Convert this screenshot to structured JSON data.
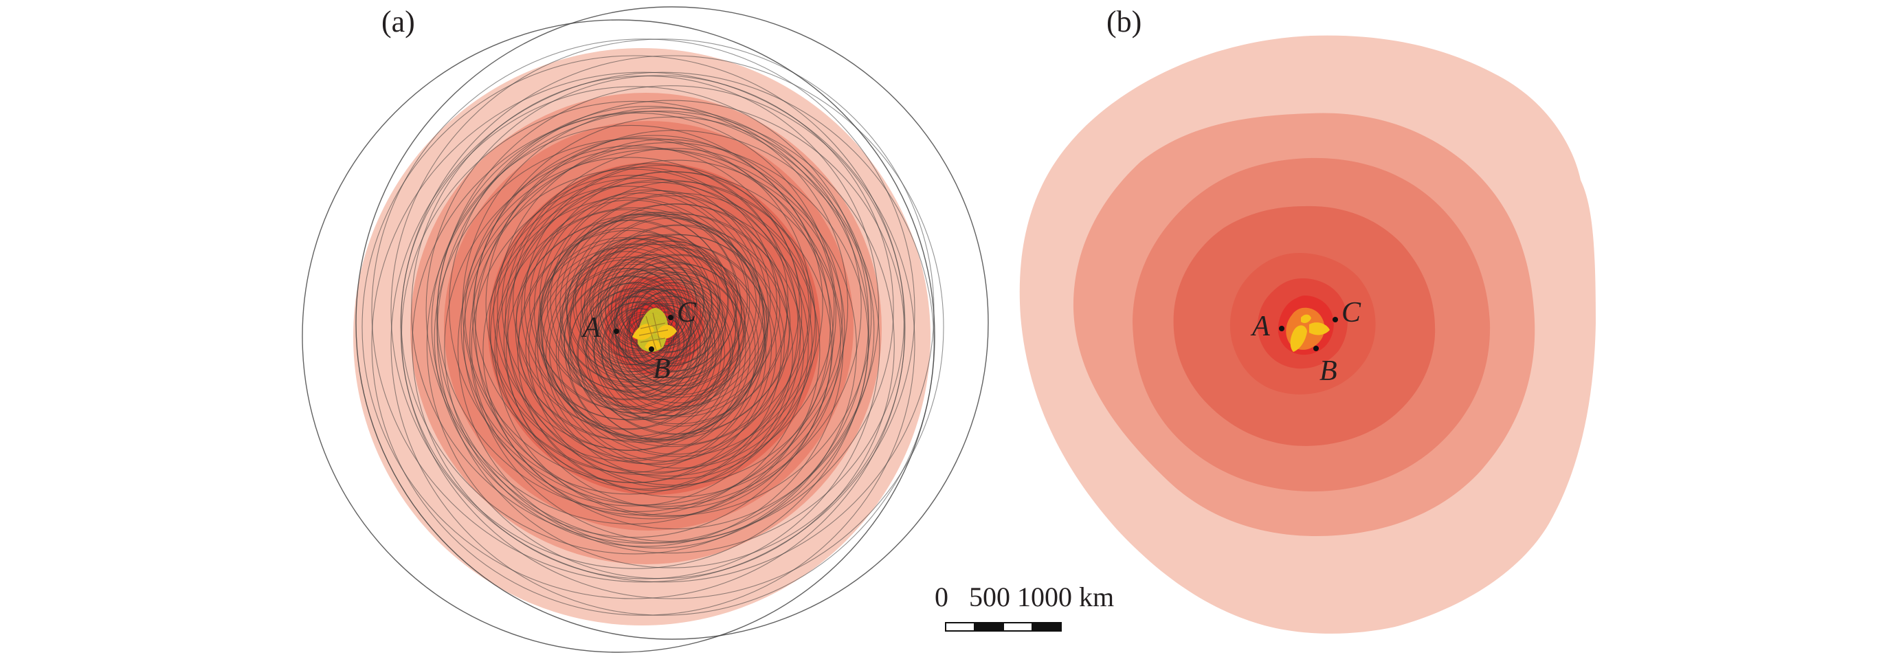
{
  "panels": [
    {
      "label": "(a)"
    },
    {
      "label": "(b)"
    }
  ],
  "points": {
    "a": [
      "A",
      "B",
      "C"
    ],
    "b": [
      "A",
      "B",
      "C"
    ]
  },
  "scale_bar": {
    "ticks": [
      "0",
      "500",
      "1000"
    ],
    "unit": "km",
    "text": "0   500 1000 km"
  },
  "colors": {
    "zones": [
      "#f6c9bb",
      "#f0a08d",
      "#ea8470",
      "#e46a57",
      "#e35d4b",
      "#e2473b",
      "#e4302c"
    ],
    "core_orange": "#f07b2a",
    "core_yellow": "#f5c419",
    "core_green_yellow": "#c9c628",
    "circle_stroke": "#3a3a3a"
  }
}
